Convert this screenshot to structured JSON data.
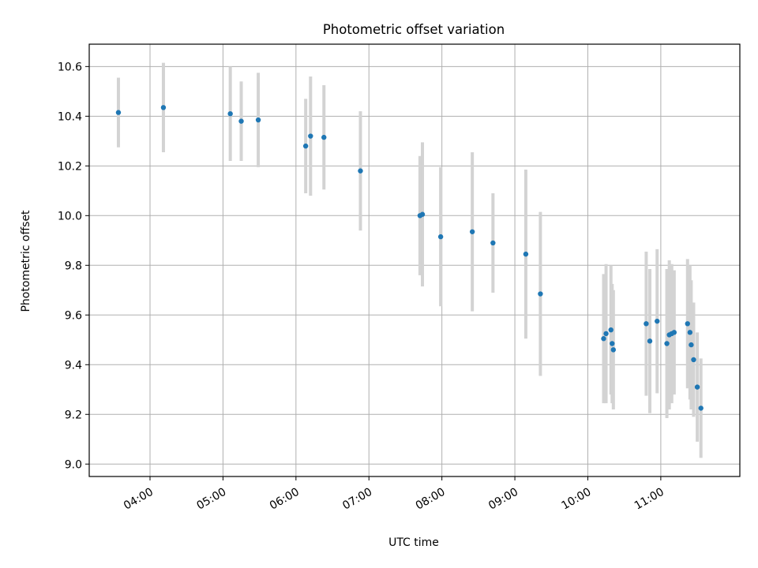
{
  "chart_data": {
    "type": "scatter",
    "title": "Photometric offset variation",
    "xlabel": "UTC time",
    "ylabel": "Photometric offset",
    "xlim": [
      "03:10",
      "12:05"
    ],
    "ylim": [
      8.95,
      10.69
    ],
    "grid": true,
    "x_tick_labels": [
      "04:00",
      "05:00",
      "06:00",
      "07:00",
      "08:00",
      "09:00",
      "10:00",
      "11:00"
    ],
    "y_tick_labels": [
      "9.0",
      "9.2",
      "9.4",
      "9.6",
      "9.8",
      "10.0",
      "10.2",
      "10.4",
      "10.6"
    ],
    "x_ticks": [
      "04:00",
      "05:00",
      "06:00",
      "07:00",
      "08:00",
      "09:00",
      "10:00",
      "11:00"
    ],
    "y_ticks": [
      9.0,
      9.2,
      9.4,
      9.6,
      9.8,
      10.0,
      10.2,
      10.4,
      10.6
    ],
    "colors": {
      "points": "#1f77b4",
      "errorbars": "#d3d3d3",
      "grid": "#b0b0b0"
    },
    "points": [
      {
        "x": "03:34",
        "y": 10.415,
        "err": 0.14
      },
      {
        "x": "04:11",
        "y": 10.435,
        "err": 0.18
      },
      {
        "x": "05:06",
        "y": 10.41,
        "err": 0.19
      },
      {
        "x": "05:15",
        "y": 10.38,
        "err": 0.16
      },
      {
        "x": "05:29",
        "y": 10.385,
        "err": 0.19
      },
      {
        "x": "06:08",
        "y": 10.28,
        "err": 0.19
      },
      {
        "x": "06:12",
        "y": 10.32,
        "err": 0.24
      },
      {
        "x": "06:23",
        "y": 10.315,
        "err": 0.21
      },
      {
        "x": "06:53",
        "y": 10.18,
        "err": 0.24
      },
      {
        "x": "07:42",
        "y": 10.0,
        "err": 0.24
      },
      {
        "x": "07:44",
        "y": 10.005,
        "err": 0.29
      },
      {
        "x": "07:59",
        "y": 9.915,
        "err": 0.28
      },
      {
        "x": "08:25",
        "y": 9.935,
        "err": 0.32
      },
      {
        "x": "08:42",
        "y": 9.89,
        "err": 0.2
      },
      {
        "x": "09:09",
        "y": 9.845,
        "err": 0.34
      },
      {
        "x": "09:21",
        "y": 9.685,
        "err": 0.33
      },
      {
        "x": "10:13",
        "y": 9.505,
        "err": 0.26
      },
      {
        "x": "10:15",
        "y": 9.525,
        "err": 0.28
      },
      {
        "x": "10:19",
        "y": 9.54,
        "err": 0.26
      },
      {
        "x": "10:20",
        "y": 9.485,
        "err": 0.24
      },
      {
        "x": "10:21",
        "y": 9.46,
        "err": 0.24
      },
      {
        "x": "10:48",
        "y": 9.565,
        "err": 0.29
      },
      {
        "x": "10:51",
        "y": 9.495,
        "err": 0.29
      },
      {
        "x": "10:57",
        "y": 9.575,
        "err": 0.29
      },
      {
        "x": "11:05",
        "y": 9.485,
        "err": 0.3
      },
      {
        "x": "11:07",
        "y": 9.52,
        "err": 0.3
      },
      {
        "x": "11:09",
        "y": 9.525,
        "err": 0.28
      },
      {
        "x": "11:11",
        "y": 9.53,
        "err": 0.25
      },
      {
        "x": "11:22",
        "y": 9.565,
        "err": 0.26
      },
      {
        "x": "11:24",
        "y": 9.53,
        "err": 0.27
      },
      {
        "x": "11:25",
        "y": 9.48,
        "err": 0.26
      },
      {
        "x": "11:27",
        "y": 9.42,
        "err": 0.23
      },
      {
        "x": "11:30",
        "y": 9.31,
        "err": 0.22
      },
      {
        "x": "11:33",
        "y": 9.225,
        "err": 0.2
      }
    ]
  }
}
